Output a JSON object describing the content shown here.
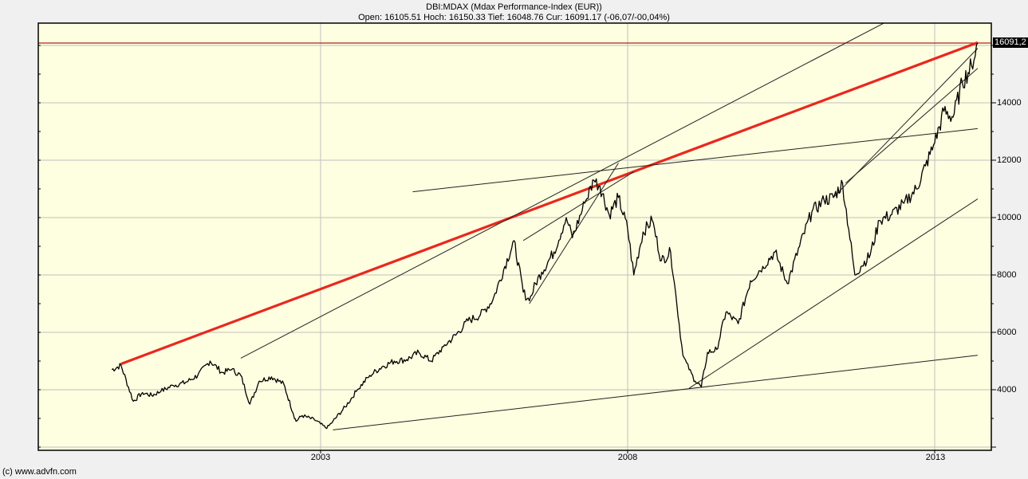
{
  "header": {
    "title": "DBI:MDAX (Mdax Performance-Index (EUR))",
    "ohlc": "Open: 16105.51 Hoch: 16150.33 Tief: 16048.76 Cur: 16091.17 (-06,07/-00,04%)"
  },
  "current_value_label": "16091,2",
  "footer": {
    "copyright": "(c) www.advfn.com"
  },
  "colors": {
    "background": "#f0f0f0",
    "plot_background": "#fefee0",
    "grid": "#c0c0c0",
    "price_line": "#000000",
    "red_trendline": "#e8281e",
    "current_level_line": "#b22222"
  },
  "chart_data": {
    "type": "line",
    "title": "DBI:MDAX (Mdax Performance-Index (EUR))",
    "subtitle": "Open: 16105.51 Hoch: 16150.33 Tief: 16048.76 Cur: 16091.17 (-06,07/-00,04%)",
    "xlabel": "",
    "ylabel": "",
    "x_tick_labels": [
      "2003",
      "2008",
      "2013"
    ],
    "y_tick_labels": [
      "4000",
      "6000",
      "8000",
      "10000",
      "12000",
      "14000"
    ],
    "ylim": [
      1950,
      17500
    ],
    "xlim": [
      1999.6,
      2013.7
    ],
    "grid": true,
    "y_axis_position": "right",
    "current_value": 16091.2,
    "series": [
      {
        "name": "MDAX",
        "x": [
          1999.6,
          1999.75,
          1999.95,
          2000.1,
          2000.25,
          2000.4,
          2000.6,
          2000.8,
          2001.0,
          2001.2,
          2001.4,
          2001.55,
          2001.7,
          2001.85,
          2002.0,
          2002.2,
          2002.4,
          2002.55,
          2002.6,
          2002.7,
          2002.9,
          2003.1,
          2003.2,
          2003.4,
          2003.6,
          2003.8,
          2004.0,
          2004.2,
          2004.4,
          2004.6,
          2004.8,
          2005.0,
          2005.2,
          2005.4,
          2005.6,
          2005.8,
          2006.0,
          2006.15,
          2006.3,
          2006.4,
          2006.5,
          2006.6,
          2006.8,
          2007.0,
          2007.1,
          2007.3,
          2007.45,
          2007.55,
          2007.7,
          2007.85,
          2008.0,
          2008.1,
          2008.25,
          2008.4,
          2008.55,
          2008.7,
          2008.8,
          2008.9,
          2009.0,
          2009.1,
          2009.2,
          2009.3,
          2009.45,
          2009.6,
          2009.8,
          2010.0,
          2010.2,
          2010.4,
          2010.6,
          2010.8,
          2011.0,
          2011.2,
          2011.35,
          2011.5,
          2011.6,
          2011.7,
          2011.8,
          2011.95,
          2012.1,
          2012.3,
          2012.5,
          2012.7,
          2012.85,
          2013.0,
          2013.15,
          2013.3,
          2013.45,
          2013.6,
          2013.7
        ],
        "values": [
          4700,
          4850,
          3600,
          3900,
          3800,
          3950,
          4150,
          4250,
          4500,
          5000,
          4600,
          4700,
          4500,
          3500,
          4300,
          4450,
          4200,
          3200,
          2900,
          3100,
          2950,
          2650,
          2900,
          3400,
          4000,
          4500,
          4800,
          5000,
          5050,
          5300,
          5000,
          5500,
          5900,
          6400,
          6600,
          7100,
          8300,
          9200,
          7400,
          7100,
          7700,
          8100,
          8800,
          10000,
          9300,
          10500,
          11300,
          11100,
          10100,
          10700,
          9600,
          8000,
          9500,
          9900,
          8500,
          8800,
          7000,
          5200,
          4700,
          4300,
          4100,
          5300,
          5400,
          6700,
          6300,
          7800,
          8300,
          8800,
          7700,
          9000,
          10200,
          10600,
          10700,
          11200,
          9600,
          8000,
          8300,
          8700,
          9900,
          10100,
          10500,
          11000,
          11800,
          12600,
          13700,
          13500,
          14700,
          15300,
          16091
        ]
      }
    ],
    "trendlines": [
      {
        "color": "red",
        "from": [
          1999.75,
          4900
        ],
        "to": [
          2013.7,
          16100
        ]
      },
      {
        "color": "black",
        "from": [
          2001.7,
          5100
        ],
        "to": [
          2013.0,
          17700
        ]
      },
      {
        "color": "black",
        "from": [
          2004.5,
          10900
        ],
        "to": [
          2013.7,
          13100
        ]
      },
      {
        "color": "black",
        "from": [
          2003.2,
          2600
        ],
        "to": [
          2013.7,
          5200
        ]
      },
      {
        "color": "black",
        "from": [
          2009.0,
          4050
        ],
        "to": [
          2013.7,
          10650
        ]
      },
      {
        "color": "black",
        "from": [
          2006.3,
          9200
        ],
        "to": [
          2008.1,
          11600
        ]
      },
      {
        "color": "black",
        "from": [
          2006.4,
          7000
        ],
        "to": [
          2007.85,
          11900
        ]
      },
      {
        "color": "black",
        "from": [
          2011.35,
          10700
        ],
        "to": [
          2013.7,
          15900
        ]
      },
      {
        "color": "black",
        "from": [
          2011.55,
          11200
        ],
        "to": [
          2013.7,
          15200
        ]
      }
    ]
  }
}
